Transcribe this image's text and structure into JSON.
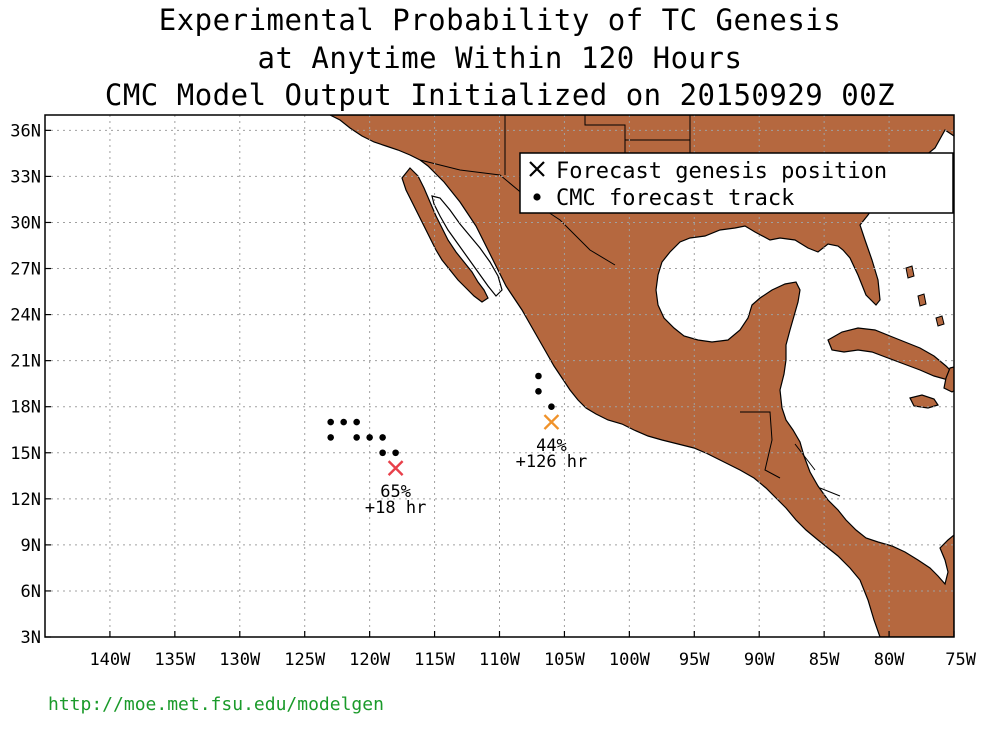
{
  "title": {
    "line1": "Experimental Probability of TC Genesis",
    "line2": "at Anytime Within 120 Hours",
    "line3": "CMC Model Output Initialized on 20150929 00Z"
  },
  "map": {
    "lon_range": [
      -145,
      -75
    ],
    "lat_range": [
      3,
      37
    ],
    "lat_ticks": [
      {
        "value": 36,
        "label": "36N"
      },
      {
        "value": 33,
        "label": "33N"
      },
      {
        "value": 30,
        "label": "30N"
      },
      {
        "value": 27,
        "label": "27N"
      },
      {
        "value": 24,
        "label": "24N"
      },
      {
        "value": 21,
        "label": "21N"
      },
      {
        "value": 18,
        "label": "18N"
      },
      {
        "value": 15,
        "label": "15N"
      },
      {
        "value": 12,
        "label": "12N"
      },
      {
        "value": 9,
        "label": "9N"
      },
      {
        "value": 6,
        "label": "6N"
      },
      {
        "value": 3,
        "label": "3N"
      }
    ],
    "lon_ticks": [
      {
        "value": -140,
        "label": "140W"
      },
      {
        "value": -135,
        "label": "135W"
      },
      {
        "value": -130,
        "label": "130W"
      },
      {
        "value": -125,
        "label": "125W"
      },
      {
        "value": -120,
        "label": "120W"
      },
      {
        "value": -115,
        "label": "115W"
      },
      {
        "value": -110,
        "label": "110W"
      },
      {
        "value": -105,
        "label": "105W"
      },
      {
        "value": -100,
        "label": "100W"
      },
      {
        "value": -95,
        "label": "95W"
      },
      {
        "value": -90,
        "label": "90W"
      },
      {
        "value": -85,
        "label": "85W"
      },
      {
        "value": -80,
        "label": "80W"
      },
      {
        "value": -75,
        "label": "75W"
      }
    ],
    "grid": true,
    "colors": {
      "land": "#b5683f",
      "ocean": "#ffffff",
      "grid": "#a0a0a0",
      "border": "#000000"
    }
  },
  "legend": {
    "placement": "top-right",
    "genesis_label": "Forecast genesis position",
    "track_label": "CMC forecast track"
  },
  "systems": [
    {
      "genesis": {
        "lon": -118,
        "lat": 14
      },
      "color": "#e8404a",
      "probability_label": "65%",
      "time_label": "+18 hr",
      "track": [
        {
          "lon": -123,
          "lat": 17
        },
        {
          "lon": -122,
          "lat": 17
        },
        {
          "lon": -121,
          "lat": 17
        },
        {
          "lon": -123,
          "lat": 16
        },
        {
          "lon": -121,
          "lat": 16
        },
        {
          "lon": -120,
          "lat": 16
        },
        {
          "lon": -119,
          "lat": 16
        },
        {
          "lon": -119,
          "lat": 15
        },
        {
          "lon": -118,
          "lat": 15
        }
      ]
    },
    {
      "genesis": {
        "lon": -106,
        "lat": 17
      },
      "color": "#f0922a",
      "probability_label": "44%",
      "time_label": "+126 hr",
      "track": [
        {
          "lon": -107,
          "lat": 20
        },
        {
          "lon": -107,
          "lat": 19
        },
        {
          "lon": -106,
          "lat": 18
        }
      ]
    }
  ],
  "footer": {
    "url": "http://moe.met.fsu.edu/modelgen"
  }
}
